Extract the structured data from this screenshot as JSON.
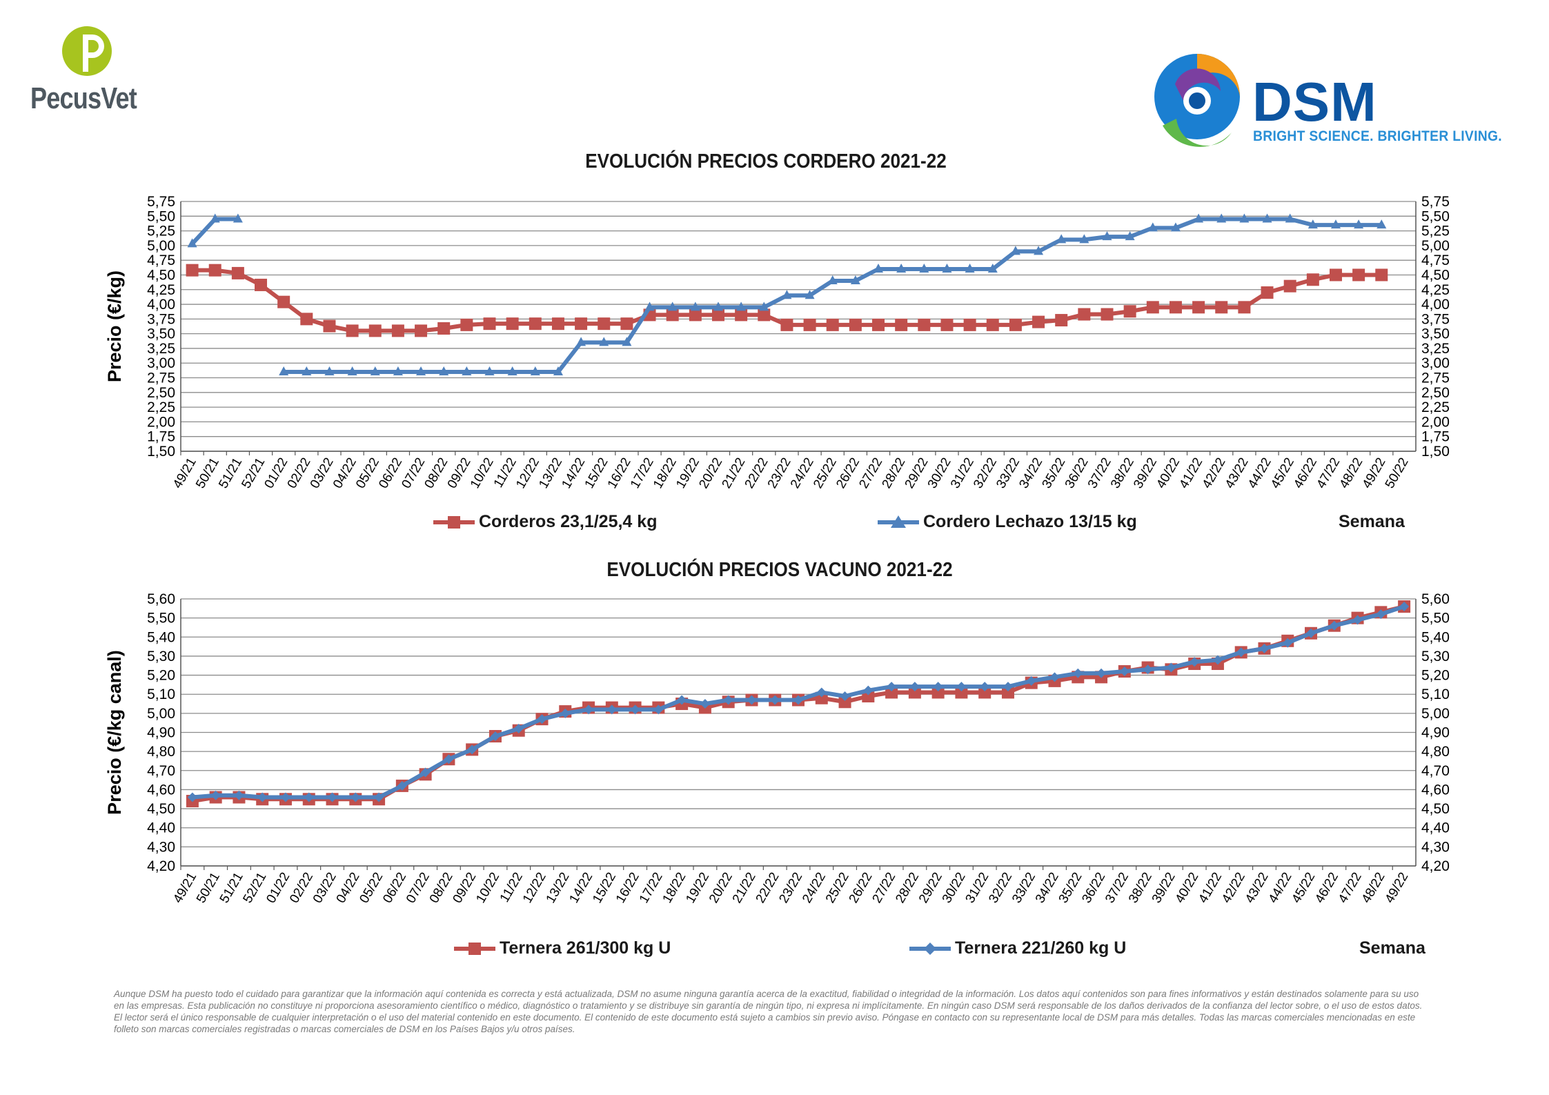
{
  "header": {
    "left_logo_text": "PecusVet",
    "right_logo_text": "DSM",
    "right_logo_tagline": "BRIGHT SCIENCE. BRIGHTER LIVING."
  },
  "colors": {
    "red": "#c0504d",
    "blue": "#4f81bd",
    "pecus_green": "#a7c41f",
    "dsm_blue": "#0d55a1"
  },
  "chart_data": [
    {
      "type": "line",
      "title": "EVOLUCIÓN PRECIOS CORDERO 2021-22",
      "ylabel": "Precio (€/kg)",
      "xlabel": "Semana",
      "ylim": [
        1.5,
        5.75
      ],
      "ystep": 0.25,
      "grid": true,
      "legend_position": "bottom",
      "categories": [
        "49/21",
        "50/21",
        "51/21",
        "52/21",
        "01/22",
        "02/22",
        "03/22",
        "04/22",
        "05/22",
        "06/22",
        "07/22",
        "08/22",
        "09/22",
        "10/22",
        "11/22",
        "12/22",
        "13/22",
        "14/22",
        "15/22",
        "16/22",
        "17/22",
        "18/22",
        "19/22",
        "20/22",
        "21/22",
        "22/22",
        "23/22",
        "24/22",
        "25/22",
        "26/22",
        "27/22",
        "28/22",
        "29/22",
        "30/22",
        "31/22",
        "32/22",
        "33/22",
        "34/22",
        "35/22",
        "36/22",
        "37/22",
        "38/22",
        "39/22",
        "40/22",
        "41/22",
        "42/22",
        "43/22",
        "44/22",
        "45/22",
        "46/22",
        "47/22",
        "48/22",
        "49/22",
        "50/22"
      ],
      "yticks": [
        "1,50",
        "1,75",
        "2,00",
        "2,25",
        "2,50",
        "2,75",
        "3,00",
        "3,25",
        "3,50",
        "3,75",
        "4,00",
        "4,25",
        "4,50",
        "4,75",
        "5,00",
        "5,25",
        "5,50",
        "5,75"
      ],
      "series": [
        {
          "name": "Corderos 23,1/25,4 kg",
          "marker": "square",
          "color": "#c0504d",
          "values": [
            4.58,
            4.58,
            4.53,
            4.33,
            4.04,
            3.75,
            3.63,
            3.55,
            3.55,
            3.55,
            3.55,
            3.59,
            3.65,
            3.67,
            3.67,
            3.67,
            3.67,
            3.67,
            3.67,
            3.67,
            3.82,
            3.82,
            3.82,
            3.82,
            3.82,
            3.82,
            3.65,
            3.65,
            3.65,
            3.65,
            3.65,
            3.65,
            3.65,
            3.65,
            3.65,
            3.65,
            3.65,
            3.7,
            3.73,
            3.83,
            3.83,
            3.88,
            3.95,
            3.95,
            3.95,
            3.95,
            3.95,
            4.2,
            4.31,
            4.42,
            4.5,
            4.5,
            4.5,
            null
          ]
        },
        {
          "name": "Cordero Lechazo 13/15 kg",
          "marker": "triangle",
          "color": "#4f81bd",
          "values": [
            5.03,
            5.45,
            5.45,
            null,
            2.85,
            2.85,
            2.85,
            2.85,
            2.85,
            2.85,
            2.85,
            2.85,
            2.85,
            2.85,
            2.85,
            2.85,
            2.85,
            3.35,
            3.35,
            3.35,
            3.95,
            3.95,
            3.95,
            3.95,
            3.95,
            3.95,
            4.15,
            4.15,
            4.4,
            4.4,
            4.6,
            4.6,
            4.6,
            4.6,
            4.6,
            4.6,
            4.9,
            4.9,
            5.1,
            5.1,
            5.15,
            5.15,
            5.3,
            5.3,
            5.45,
            5.45,
            5.45,
            5.45,
            5.45,
            5.35,
            5.35,
            5.35,
            5.35,
            null
          ]
        }
      ]
    },
    {
      "type": "line",
      "title": "EVOLUCIÓN PRECIOS VACUNO 2021-22",
      "ylabel": "Precio (€/kg canal)",
      "xlabel": "Semana",
      "ylim": [
        4.2,
        5.6
      ],
      "ystep": 0.1,
      "grid": true,
      "legend_position": "bottom",
      "categories": [
        "49/21",
        "50/21",
        "51/21",
        "52/21",
        "01/22",
        "02/22",
        "03/22",
        "04/22",
        "05/22",
        "06/22",
        "07/22",
        "08/22",
        "09/22",
        "10/22",
        "11/22",
        "12/22",
        "13/22",
        "14/22",
        "15/22",
        "16/22",
        "17/22",
        "18/22",
        "19/22",
        "20/22",
        "21/22",
        "22/22",
        "23/22",
        "24/22",
        "25/22",
        "26/22",
        "27/22",
        "28/22",
        "29/22",
        "30/22",
        "31/22",
        "32/22",
        "33/22",
        "34/22",
        "35/22",
        "36/22",
        "37/22",
        "38/22",
        "39/22",
        "40/22",
        "41/22",
        "42/22",
        "43/22",
        "44/22",
        "45/22",
        "46/22",
        "47/22",
        "48/22",
        "49/22"
      ],
      "yticks": [
        "4,20",
        "4,30",
        "4,40",
        "4,50",
        "4,60",
        "4,70",
        "4,80",
        "4,90",
        "5,00",
        "5,10",
        "5,20",
        "5,30",
        "5,40",
        "5,50",
        "5,60"
      ],
      "series": [
        {
          "name": "Ternera 261/300 kg U",
          "marker": "square",
          "color": "#c0504d",
          "values": [
            4.54,
            4.56,
            4.56,
            4.55,
            4.55,
            4.55,
            4.55,
            4.55,
            4.55,
            4.62,
            4.68,
            4.76,
            4.81,
            4.88,
            4.91,
            4.97,
            5.01,
            5.03,
            5.03,
            5.03,
            5.03,
            5.05,
            5.03,
            5.06,
            5.07,
            5.07,
            5.07,
            5.08,
            5.06,
            5.09,
            5.11,
            5.11,
            5.11,
            5.11,
            5.11,
            5.11,
            5.16,
            5.17,
            5.19,
            5.19,
            5.22,
            5.24,
            5.23,
            5.26,
            5.26,
            5.32,
            5.34,
            5.38,
            5.42,
            5.46,
            5.5,
            5.53,
            5.56
          ]
        },
        {
          "name": "Ternera 221/260 kg U",
          "marker": "diamond",
          "color": "#4f81bd",
          "values": [
            4.56,
            4.57,
            4.57,
            4.56,
            4.56,
            4.56,
            4.56,
            4.56,
            4.56,
            4.62,
            4.69,
            4.76,
            4.81,
            4.88,
            4.92,
            4.97,
            5.0,
            5.02,
            5.02,
            5.02,
            5.02,
            5.07,
            5.05,
            5.07,
            5.07,
            5.07,
            5.07,
            5.11,
            5.09,
            5.12,
            5.14,
            5.14,
            5.14,
            5.14,
            5.14,
            5.14,
            5.17,
            5.19,
            5.21,
            5.21,
            5.22,
            5.23,
            5.24,
            5.27,
            5.28,
            5.32,
            5.34,
            5.37,
            5.42,
            5.46,
            5.49,
            5.52,
            5.56
          ]
        }
      ]
    }
  ],
  "disclaimer": "Aunque DSM ha puesto todo el cuidado para garantizar que la información aquí contenida es correcta y está actualizada, DSM no asume ninguna garantía acerca de la exactitud, fiabilidad o integridad de la información. Los datos aquí contenidos son para fines informativos y están destinados solamente para su uso en las empresas. Esta publicación no constituye ni proporciona asesoramiento científico o médico, diagnóstico o tratamiento y se distribuye sin garantía de ningún tipo, ni expresa ni implícitamente. En ningún caso DSM será responsable de los daños derivados de la confianza del lector sobre, o el uso de estos datos. El lector será el único responsable de cualquier interpretación o el uso del material contenido en este documento. El contenido de este documento está sujeto a cambios sin previo aviso. Póngase en contacto con su representante local de DSM para más detalles. Todas las marcas comerciales mencionadas en este folleto son marcas comerciales registradas o marcas comerciales de DSM en los Países Bajos y/u otros países."
}
